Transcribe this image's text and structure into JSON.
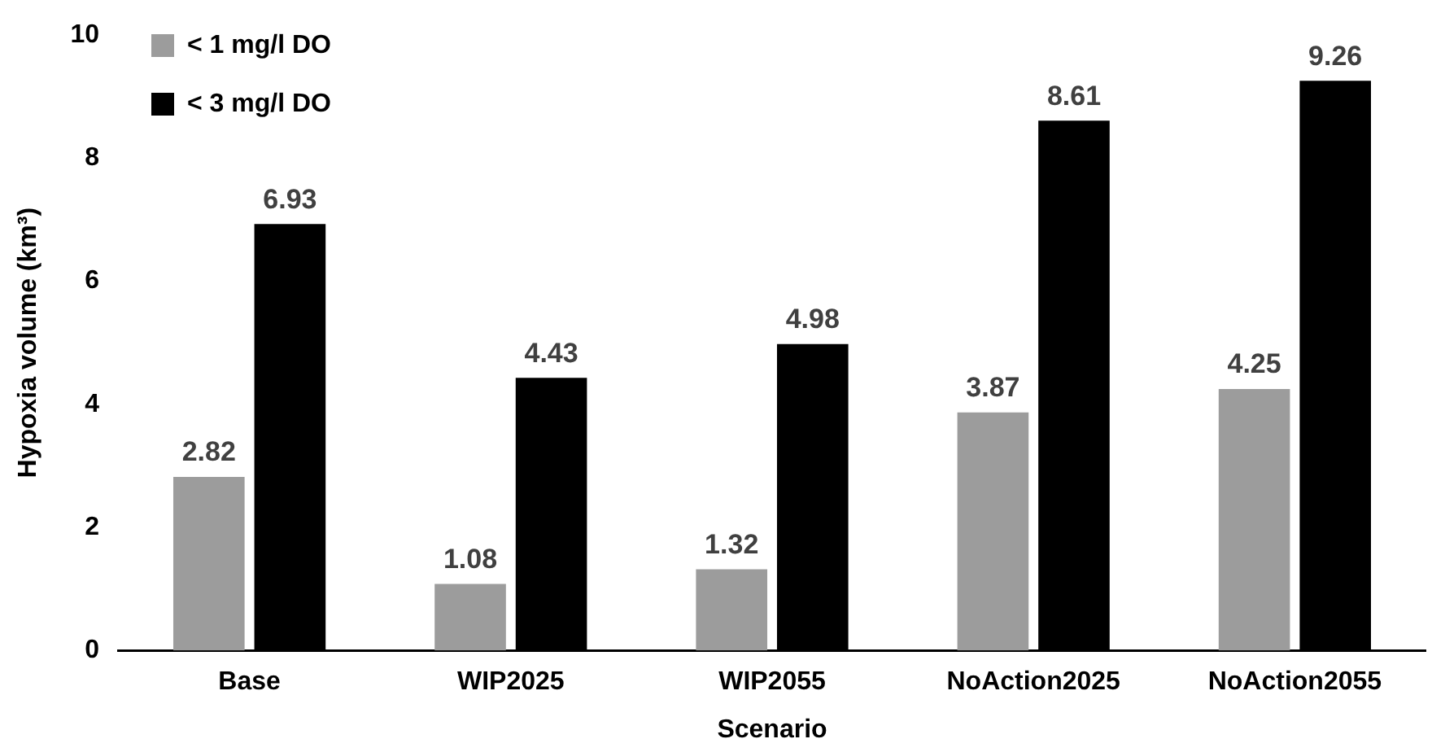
{
  "chart_data": {
    "type": "bar",
    "xlabel": "Scenario",
    "ylabel": "Hypoxia volume (km³)",
    "categories": [
      "Base",
      "WIP2025",
      "WIP2055",
      "NoAction2025",
      "NoAction2055"
    ],
    "series": [
      {
        "name": "< 1 mg/l DO",
        "color": "#9c9c9c",
        "values": [
          2.82,
          1.08,
          1.32,
          3.87,
          4.25
        ]
      },
      {
        "name": "< 3 mg/l DO",
        "color": "#000000",
        "values": [
          6.93,
          4.43,
          4.98,
          8.61,
          9.26
        ]
      }
    ],
    "ylim": [
      0,
      10
    ],
    "yticks": [
      0,
      2,
      4,
      6,
      8,
      10
    ],
    "grid": false,
    "legend": "top left",
    "data_labels": true
  }
}
